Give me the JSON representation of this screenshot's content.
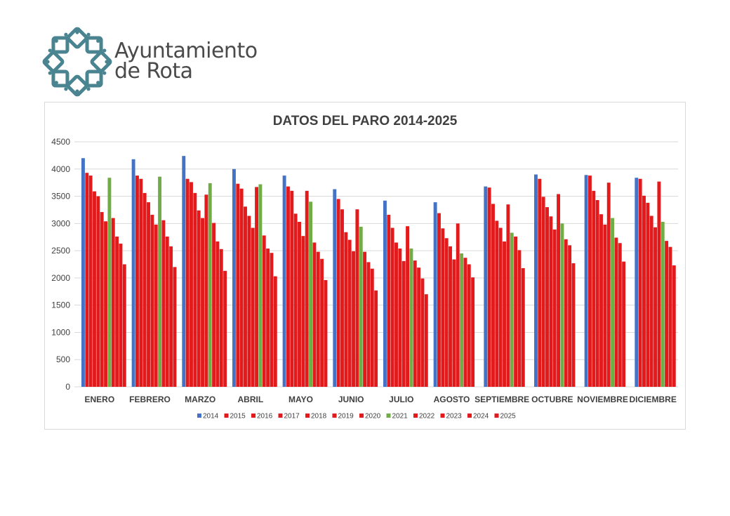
{
  "logo": {
    "line1": "Ayuntamiento",
    "line2": "de Rota",
    "color": "#4a8490"
  },
  "chart_data": {
    "type": "bar",
    "title": "DATOS DEL PARO 2014-2025",
    "xlabel": "",
    "ylabel": "",
    "ylim": [
      0,
      4500
    ],
    "yticks": [
      0,
      500,
      1000,
      1500,
      2000,
      2500,
      3000,
      3500,
      4000,
      4500
    ],
    "grid": true,
    "legend_position": "bottom",
    "categories": [
      "ENERO",
      "FEBRERO",
      "MARZO",
      "ABRIL",
      "MAYO",
      "JUNIO",
      "JULIO",
      "AGOSTO",
      "SEPTIEMBRE",
      "OCTUBRE",
      "NOVIEMBRE",
      "DICIEMBRE"
    ],
    "series": [
      {
        "name": "2014",
        "color": "#4472c4",
        "values": [
          4200,
          4180,
          4240,
          4000,
          3880,
          3630,
          3420,
          3390,
          3680,
          3900,
          3890,
          3840
        ]
      },
      {
        "name": "2015",
        "color": "#e31a1c",
        "values": [
          3930,
          3880,
          3820,
          3730,
          3680,
          3450,
          3160,
          3190,
          3660,
          3820,
          3880,
          3820
        ]
      },
      {
        "name": "2016",
        "color": "#e31a1c",
        "values": [
          3880,
          3820,
          3760,
          3640,
          3600,
          3260,
          2920,
          2910,
          3360,
          3490,
          3600,
          3510
        ]
      },
      {
        "name": "2017",
        "color": "#e31a1c",
        "values": [
          3590,
          3560,
          3560,
          3310,
          3180,
          2840,
          2650,
          2730,
          3050,
          3300,
          3430,
          3380
        ]
      },
      {
        "name": "2018",
        "color": "#e31a1c",
        "values": [
          3500,
          3390,
          3240,
          3140,
          3030,
          2700,
          2540,
          2580,
          2920,
          3130,
          3170,
          3140
        ]
      },
      {
        "name": "2019",
        "color": "#e31a1c",
        "values": [
          3210,
          3160,
          3100,
          2920,
          2770,
          2490,
          2310,
          2340,
          2670,
          2890,
          2980,
          2930
        ]
      },
      {
        "name": "2020",
        "color": "#e31a1c",
        "values": [
          3040,
          2980,
          3530,
          3670,
          3600,
          3260,
          2950,
          3000,
          3350,
          3540,
          3750,
          3770
        ]
      },
      {
        "name": "2021",
        "color": "#70ad47",
        "values": [
          3840,
          3860,
          3740,
          3720,
          3400,
          2940,
          2540,
          2450,
          2830,
          3000,
          3100,
          3030
        ]
      },
      {
        "name": "2022",
        "color": "#e31a1c",
        "values": [
          3100,
          3060,
          3010,
          2780,
          2650,
          2480,
          2320,
          2370,
          2760,
          2710,
          2740,
          2680
        ]
      },
      {
        "name": "2023",
        "color": "#e31a1c",
        "values": [
          2760,
          2760,
          2670,
          2540,
          2480,
          2290,
          2190,
          2250,
          2510,
          2600,
          2640,
          2570
        ]
      },
      {
        "name": "2024",
        "color": "#e31a1c",
        "values": [
          2630,
          2580,
          2530,
          2460,
          2350,
          2170,
          1990,
          2010,
          2180,
          2270,
          2300,
          2230
        ]
      },
      {
        "name": "2025",
        "color": "#e31a1c",
        "values": [
          2250,
          2200,
          2130,
          2030,
          1960,
          1770,
          1700,
          null,
          null,
          null,
          null,
          null
        ]
      }
    ],
    "colors": {
      "grid": "#d9d9d9",
      "axis_text": "#404040",
      "title": "#404040"
    }
  }
}
